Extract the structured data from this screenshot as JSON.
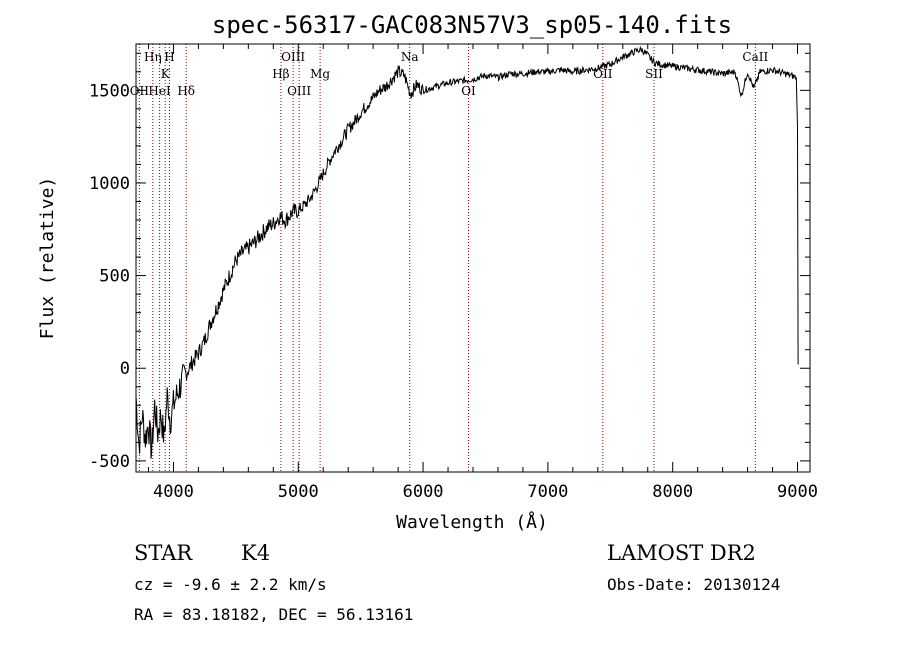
{
  "chart_data": {
    "type": "line",
    "title": "spec-56317-GAC083N57V3_sp05-140.fits",
    "xlabel": "Wavelength (Å)",
    "ylabel": "Flux (relative)",
    "xlim": [
      3700,
      9100
    ],
    "ylim": [
      -560,
      1750
    ],
    "xticks": [
      4000,
      5000,
      6000,
      7000,
      8000,
      9000
    ],
    "yticks": [
      -500,
      0,
      500,
      1000,
      1500
    ],
    "grid": false,
    "line_color": "#000000",
    "marker_color": "#8b0000",
    "spectral_lines": [
      {
        "wavelength": 3727,
        "label": "OII",
        "row": "low"
      },
      {
        "wavelength": 3835,
        "label": "Hη",
        "row": "top"
      },
      {
        "wavelength": 3889,
        "label": "HeI",
        "row": "low"
      },
      {
        "wavelength": 3934,
        "label": "K",
        "row": "mid"
      },
      {
        "wavelength": 3968,
        "label": "H",
        "row": "top"
      },
      {
        "wavelength": 4102,
        "label": "Hδ",
        "row": "low"
      },
      {
        "wavelength": 4861,
        "label": "Hβ",
        "row": "mid"
      },
      {
        "wavelength": 4959,
        "label": "OIII",
        "row": "top"
      },
      {
        "wavelength": 5007,
        "label": "OIII",
        "row": "low"
      },
      {
        "wavelength": 5175,
        "label": "Mg",
        "row": "mid"
      },
      {
        "wavelength": 5893,
        "label": "Na",
        "row": "top"
      },
      {
        "wavelength": 6364,
        "label": "OI",
        "row": "low"
      },
      {
        "wavelength": 7440,
        "label": "OII",
        "row": "mid"
      },
      {
        "wavelength": 7850,
        "label": "SII",
        "row": "mid"
      },
      {
        "wavelength": 8662,
        "label": "CaII",
        "row": "top"
      }
    ],
    "spectrum": {
      "x": [
        3700,
        3725,
        3750,
        3775,
        3800,
        3825,
        3850,
        3875,
        3900,
        3925,
        3950,
        3975,
        4000,
        4050,
        4100,
        4150,
        4200,
        4250,
        4300,
        4350,
        4400,
        4450,
        4500,
        4550,
        4600,
        4650,
        4700,
        4750,
        4800,
        4850,
        4900,
        4950,
        5000,
        5050,
        5100,
        5150,
        5200,
        5250,
        5300,
        5350,
        5400,
        5450,
        5500,
        5550,
        5600,
        5650,
        5700,
        5750,
        5800,
        5850,
        5900,
        5950,
        6000,
        6100,
        6200,
        6300,
        6400,
        6500,
        6600,
        6700,
        6800,
        6900,
        7000,
        7100,
        7200,
        7300,
        7400,
        7500,
        7600,
        7700,
        7750,
        7800,
        7850,
        7900,
        8000,
        8100,
        8200,
        8300,
        8400,
        8500,
        8550,
        8600,
        8650,
        8700,
        8800,
        8900,
        8950,
        8990,
        9000,
        9005
      ],
      "y": [
        -150,
        -420,
        -250,
        -380,
        -300,
        -450,
        -200,
        -350,
        -250,
        -380,
        -150,
        -280,
        -200,
        -100,
        -30,
        30,
        80,
        150,
        250,
        330,
        420,
        500,
        580,
        620,
        650,
        680,
        720,
        760,
        780,
        820,
        800,
        840,
        850,
        880,
        920,
        980,
        1050,
        1120,
        1180,
        1230,
        1290,
        1330,
        1380,
        1420,
        1460,
        1500,
        1520,
        1560,
        1600,
        1580,
        1480,
        1530,
        1500,
        1520,
        1540,
        1550,
        1560,
        1580,
        1570,
        1590,
        1590,
        1600,
        1600,
        1610,
        1600,
        1610,
        1620,
        1640,
        1680,
        1710,
        1720,
        1690,
        1650,
        1640,
        1630,
        1620,
        1610,
        1600,
        1590,
        1600,
        1470,
        1600,
        1510,
        1600,
        1610,
        1590,
        1580,
        1570,
        1300,
        20
      ]
    }
  },
  "info": {
    "class_label": "STAR",
    "subclass": "K4",
    "redshift": "cz = -9.6 ± 2.2 km/s",
    "coords": "RA =  83.18182, DEC =  56.13161",
    "survey": "LAMOST DR2",
    "obs_date": "Obs-Date: 20130124"
  }
}
